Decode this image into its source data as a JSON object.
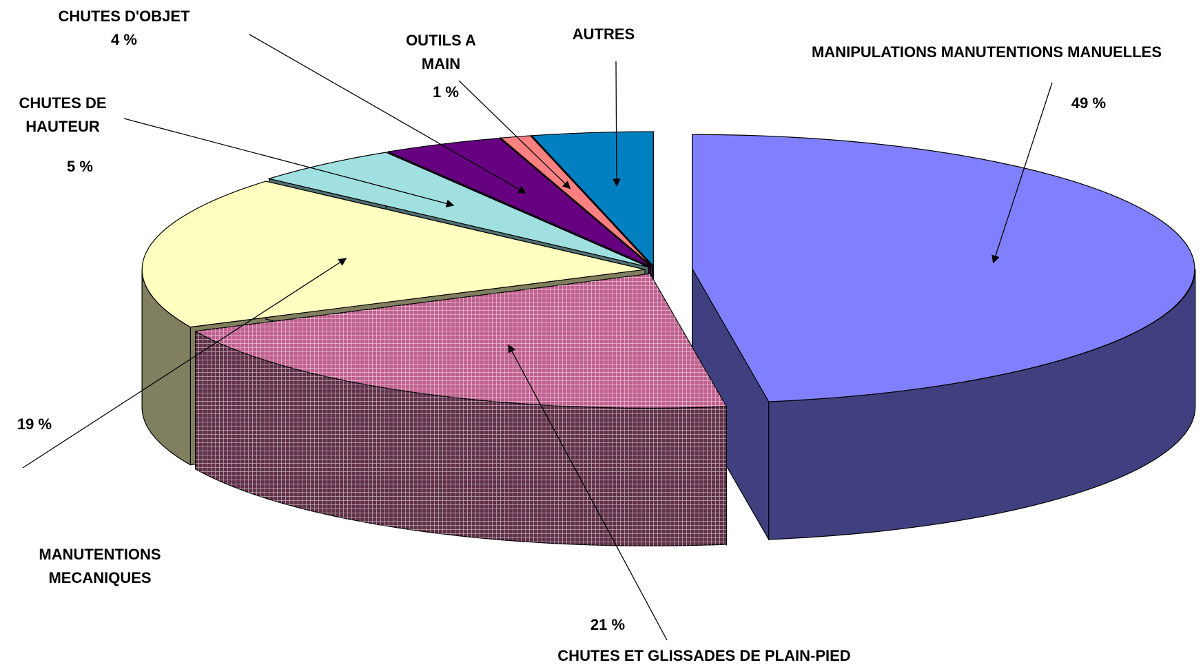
{
  "chart_data": {
    "type": "pie3d",
    "categories": [
      "MANIPULATIONS MANUTENTIONS MANUELLES",
      "CHUTES ET GLISSADES DE PLAIN-PIED",
      "MANUTENTIONS MECANIQUES",
      "CHUTES DE HAUTEUR",
      "CHUTES D'OBJET",
      "OUTILS A MAIN",
      "AUTRES"
    ],
    "values": [
      49,
      21,
      19,
      5,
      4,
      1,
      4
    ],
    "value_labels": [
      "49 %",
      "21 %",
      "19 %",
      "5 %",
      "4 %",
      "1 %",
      null
    ],
    "colors": [
      "#8080ff",
      "#c0608f",
      "#ffffc0",
      "#a0e0e0",
      "#660080",
      "#ff8080",
      "#0080c0"
    ]
  }
}
